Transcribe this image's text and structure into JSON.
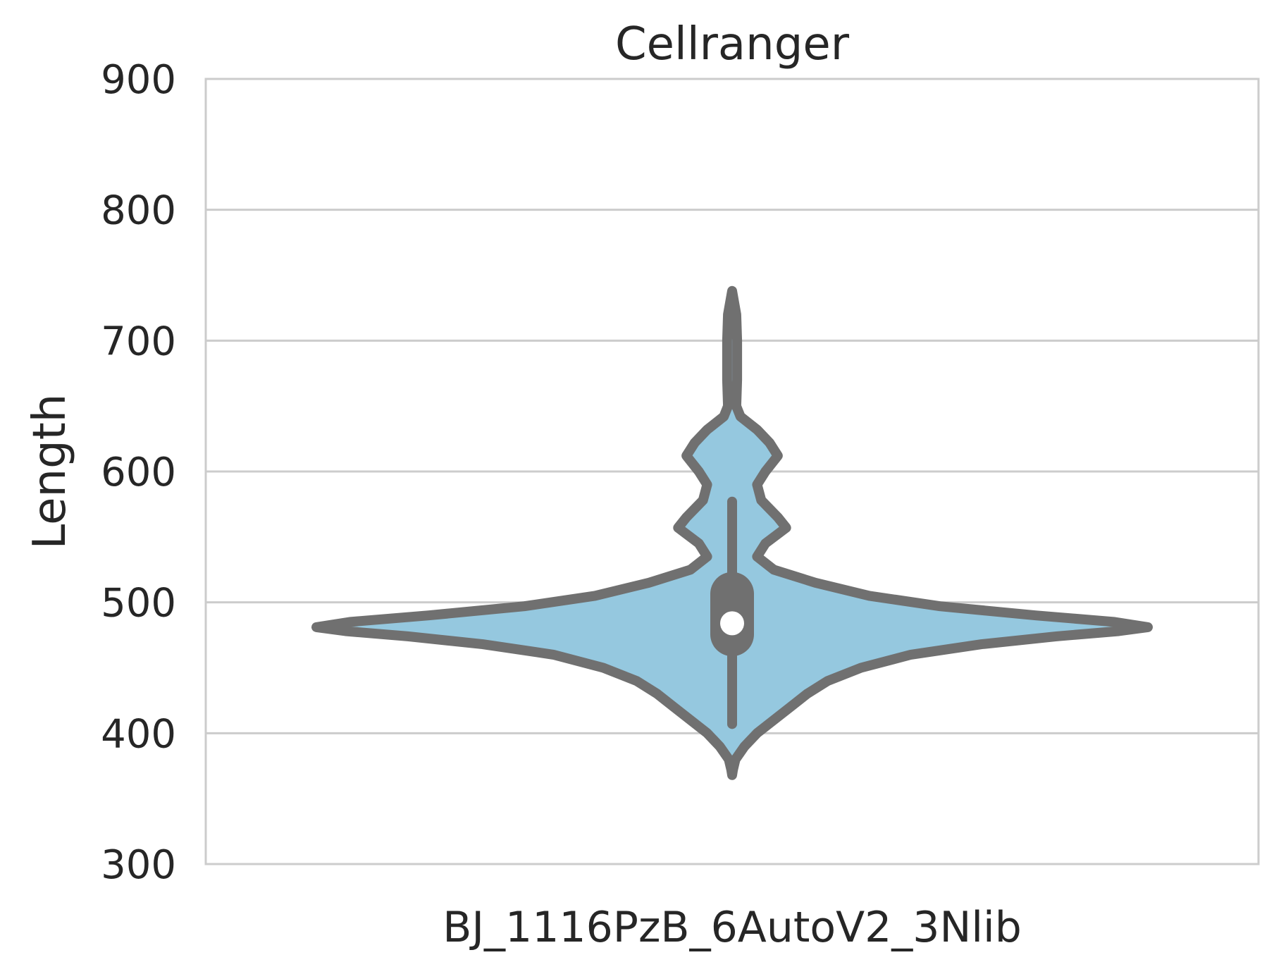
{
  "chart_data": {
    "type": "violin",
    "title": "Cellranger",
    "xlabel": "",
    "ylabel": "Length",
    "ylim": [
      300,
      900
    ],
    "yticks": [
      300,
      400,
      500,
      600,
      700,
      800,
      900
    ],
    "categories": [
      "BJ_1116PzB_6AutoV2_3Nlib"
    ],
    "grid": true,
    "fill_color": "#95c8df",
    "outline_color": "#707070",
    "summary": {
      "min": 407,
      "q1": 468,
      "median": 484,
      "q3": 514,
      "max": 577
    },
    "density_extent": [
      368,
      738
    ],
    "density_profile": [
      {
        "y": 368,
        "w": 0.0
      },
      {
        "y": 372,
        "w": 0.002
      },
      {
        "y": 380,
        "w": 0.008
      },
      {
        "y": 390,
        "w": 0.03
      },
      {
        "y": 400,
        "w": 0.06
      },
      {
        "y": 410,
        "w": 0.1
      },
      {
        "y": 420,
        "w": 0.14
      },
      {
        "y": 430,
        "w": 0.18
      },
      {
        "y": 440,
        "w": 0.23
      },
      {
        "y": 450,
        "w": 0.31
      },
      {
        "y": 460,
        "w": 0.43
      },
      {
        "y": 468,
        "w": 0.6
      },
      {
        "y": 474,
        "w": 0.78
      },
      {
        "y": 478,
        "w": 0.93
      },
      {
        "y": 481,
        "w": 1.0
      },
      {
        "y": 485,
        "w": 0.92
      },
      {
        "y": 490,
        "w": 0.73
      },
      {
        "y": 497,
        "w": 0.5
      },
      {
        "y": 505,
        "w": 0.33
      },
      {
        "y": 515,
        "w": 0.2
      },
      {
        "y": 525,
        "w": 0.1
      },
      {
        "y": 535,
        "w": 0.06
      },
      {
        "y": 545,
        "w": 0.08
      },
      {
        "y": 557,
        "w": 0.13
      },
      {
        "y": 565,
        "w": 0.11
      },
      {
        "y": 578,
        "w": 0.07
      },
      {
        "y": 590,
        "w": 0.06
      },
      {
        "y": 600,
        "w": 0.08
      },
      {
        "y": 612,
        "w": 0.11
      },
      {
        "y": 622,
        "w": 0.09
      },
      {
        "y": 632,
        "w": 0.06
      },
      {
        "y": 642,
        "w": 0.02
      },
      {
        "y": 650,
        "w": 0.01
      },
      {
        "y": 670,
        "w": 0.012
      },
      {
        "y": 700,
        "w": 0.012
      },
      {
        "y": 720,
        "w": 0.01
      },
      {
        "y": 738,
        "w": 0.0
      }
    ]
  }
}
